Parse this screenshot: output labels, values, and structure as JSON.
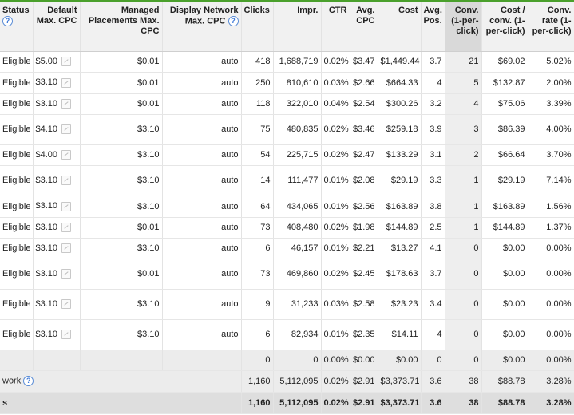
{
  "columns": {
    "status": "Status",
    "default_max_cpc": "Default Max. CPC",
    "managed_placements": "Managed Placements Max. CPC",
    "display_network": "Display Network Max. CPC",
    "clicks": "Clicks",
    "impr": "Impr.",
    "ctr": "CTR",
    "avg_cpc": "Avg. CPC",
    "cost": "Cost",
    "avg_pos": "Avg. Pos.",
    "conv": "Conv. (1-per-click)",
    "cost_conv": "Cost / conv. (1-per-click)",
    "conv_rate": "Conv. rate (1-per-click)"
  },
  "help_icon": "?",
  "rows": [
    {
      "status": "Eligible",
      "cpc": "$5.00",
      "mp": "$0.01",
      "dn": "auto",
      "clicks": "418",
      "impr": "1,688,719",
      "ctr": "0.02%",
      "avg": "$3.47",
      "cost": "$1,449.44",
      "pos": "3.7",
      "conv": "21",
      "cpconv": "$69.02",
      "rate": "5.02%"
    },
    {
      "status": "Eligible",
      "cpc": "$3.10",
      "mp": "$0.01",
      "dn": "auto",
      "clicks": "250",
      "impr": "810,610",
      "ctr": "0.03%",
      "avg": "$2.66",
      "cost": "$664.33",
      "pos": "4",
      "conv": "5",
      "cpconv": "$132.87",
      "rate": "2.00%"
    },
    {
      "status": "Eligible",
      "cpc": "$3.10",
      "mp": "$0.01",
      "dn": "auto",
      "clicks": "118",
      "impr": "322,010",
      "ctr": "0.04%",
      "avg": "$2.54",
      "cost": "$300.26",
      "pos": "3.2",
      "conv": "4",
      "cpconv": "$75.06",
      "rate": "3.39%"
    },
    {
      "status": "Eligible",
      "cpc": "$4.10",
      "mp": "$3.10",
      "dn": "auto",
      "clicks": "75",
      "impr": "480,835",
      "ctr": "0.02%",
      "avg": "$3.46",
      "cost": "$259.18",
      "pos": "3.9",
      "conv": "3",
      "cpconv": "$86.39",
      "rate": "4.00%"
    },
    {
      "status": "Eligible",
      "cpc": "$4.00",
      "mp": "$3.10",
      "dn": "auto",
      "clicks": "54",
      "impr": "225,715",
      "ctr": "0.02%",
      "avg": "$2.47",
      "cost": "$133.29",
      "pos": "3.1",
      "conv": "2",
      "cpconv": "$66.64",
      "rate": "3.70%"
    },
    {
      "status": "Eligible",
      "cpc": "$3.10",
      "mp": "$3.10",
      "dn": "auto",
      "clicks": "14",
      "impr": "111,477",
      "ctr": "0.01%",
      "avg": "$2.08",
      "cost": "$29.19",
      "pos": "3.3",
      "conv": "1",
      "cpconv": "$29.19",
      "rate": "7.14%"
    },
    {
      "status": "Eligible",
      "cpc": "$3.10",
      "mp": "$3.10",
      "dn": "auto",
      "clicks": "64",
      "impr": "434,065",
      "ctr": "0.01%",
      "avg": "$2.56",
      "cost": "$163.89",
      "pos": "3.8",
      "conv": "1",
      "cpconv": "$163.89",
      "rate": "1.56%"
    },
    {
      "status": "Eligible",
      "cpc": "$3.10",
      "mp": "$0.01",
      "dn": "auto",
      "clicks": "73",
      "impr": "408,480",
      "ctr": "0.02%",
      "avg": "$1.98",
      "cost": "$144.89",
      "pos": "2.5",
      "conv": "1",
      "cpconv": "$144.89",
      "rate": "1.37%"
    },
    {
      "status": "Eligible",
      "cpc": "$3.10",
      "mp": "$3.10",
      "dn": "auto",
      "clicks": "6",
      "impr": "46,157",
      "ctr": "0.01%",
      "avg": "$2.21",
      "cost": "$13.27",
      "pos": "4.1",
      "conv": "0",
      "cpconv": "$0.00",
      "rate": "0.00%"
    },
    {
      "status": "Eligible",
      "cpc": "$3.10",
      "mp": "$0.01",
      "dn": "auto",
      "clicks": "73",
      "impr": "469,860",
      "ctr": "0.02%",
      "avg": "$2.45",
      "cost": "$178.63",
      "pos": "3.7",
      "conv": "0",
      "cpconv": "$0.00",
      "rate": "0.00%"
    },
    {
      "status": "Eligible",
      "cpc": "$3.10",
      "mp": "$3.10",
      "dn": "auto",
      "clicks": "9",
      "impr": "31,233",
      "ctr": "0.03%",
      "avg": "$2.58",
      "cost": "$23.23",
      "pos": "3.4",
      "conv": "0",
      "cpconv": "$0.00",
      "rate": "0.00%"
    },
    {
      "status": "Eligible",
      "cpc": "$3.10",
      "mp": "$3.10",
      "dn": "auto",
      "clicks": "6",
      "impr": "82,934",
      "ctr": "0.01%",
      "avg": "$2.35",
      "cost": "$14.11",
      "pos": "4",
      "conv": "0",
      "cpconv": "$0.00",
      "rate": "0.00%"
    }
  ],
  "total_blank": {
    "clicks": "0",
    "impr": "0",
    "ctr": "0.00%",
    "avg": "$0.00",
    "cost": "$0.00",
    "pos": "0",
    "conv": "0",
    "cpconv": "$0.00",
    "rate": "0.00%"
  },
  "total_network": {
    "label": "work",
    "clicks": "1,160",
    "impr": "5,112,095",
    "ctr": "0.02%",
    "avg": "$2.91",
    "cost": "$3,373.71",
    "pos": "3.6",
    "conv": "38",
    "cpconv": "$88.78",
    "rate": "3.28%"
  },
  "total_all": {
    "label": "s",
    "clicks": "1,160",
    "impr": "5,112,095",
    "ctr": "0.02%",
    "avg": "$2.91",
    "cost": "$3,373.71",
    "pos": "3.6",
    "conv": "38",
    "cpconv": "$88.78",
    "rate": "3.28%"
  }
}
